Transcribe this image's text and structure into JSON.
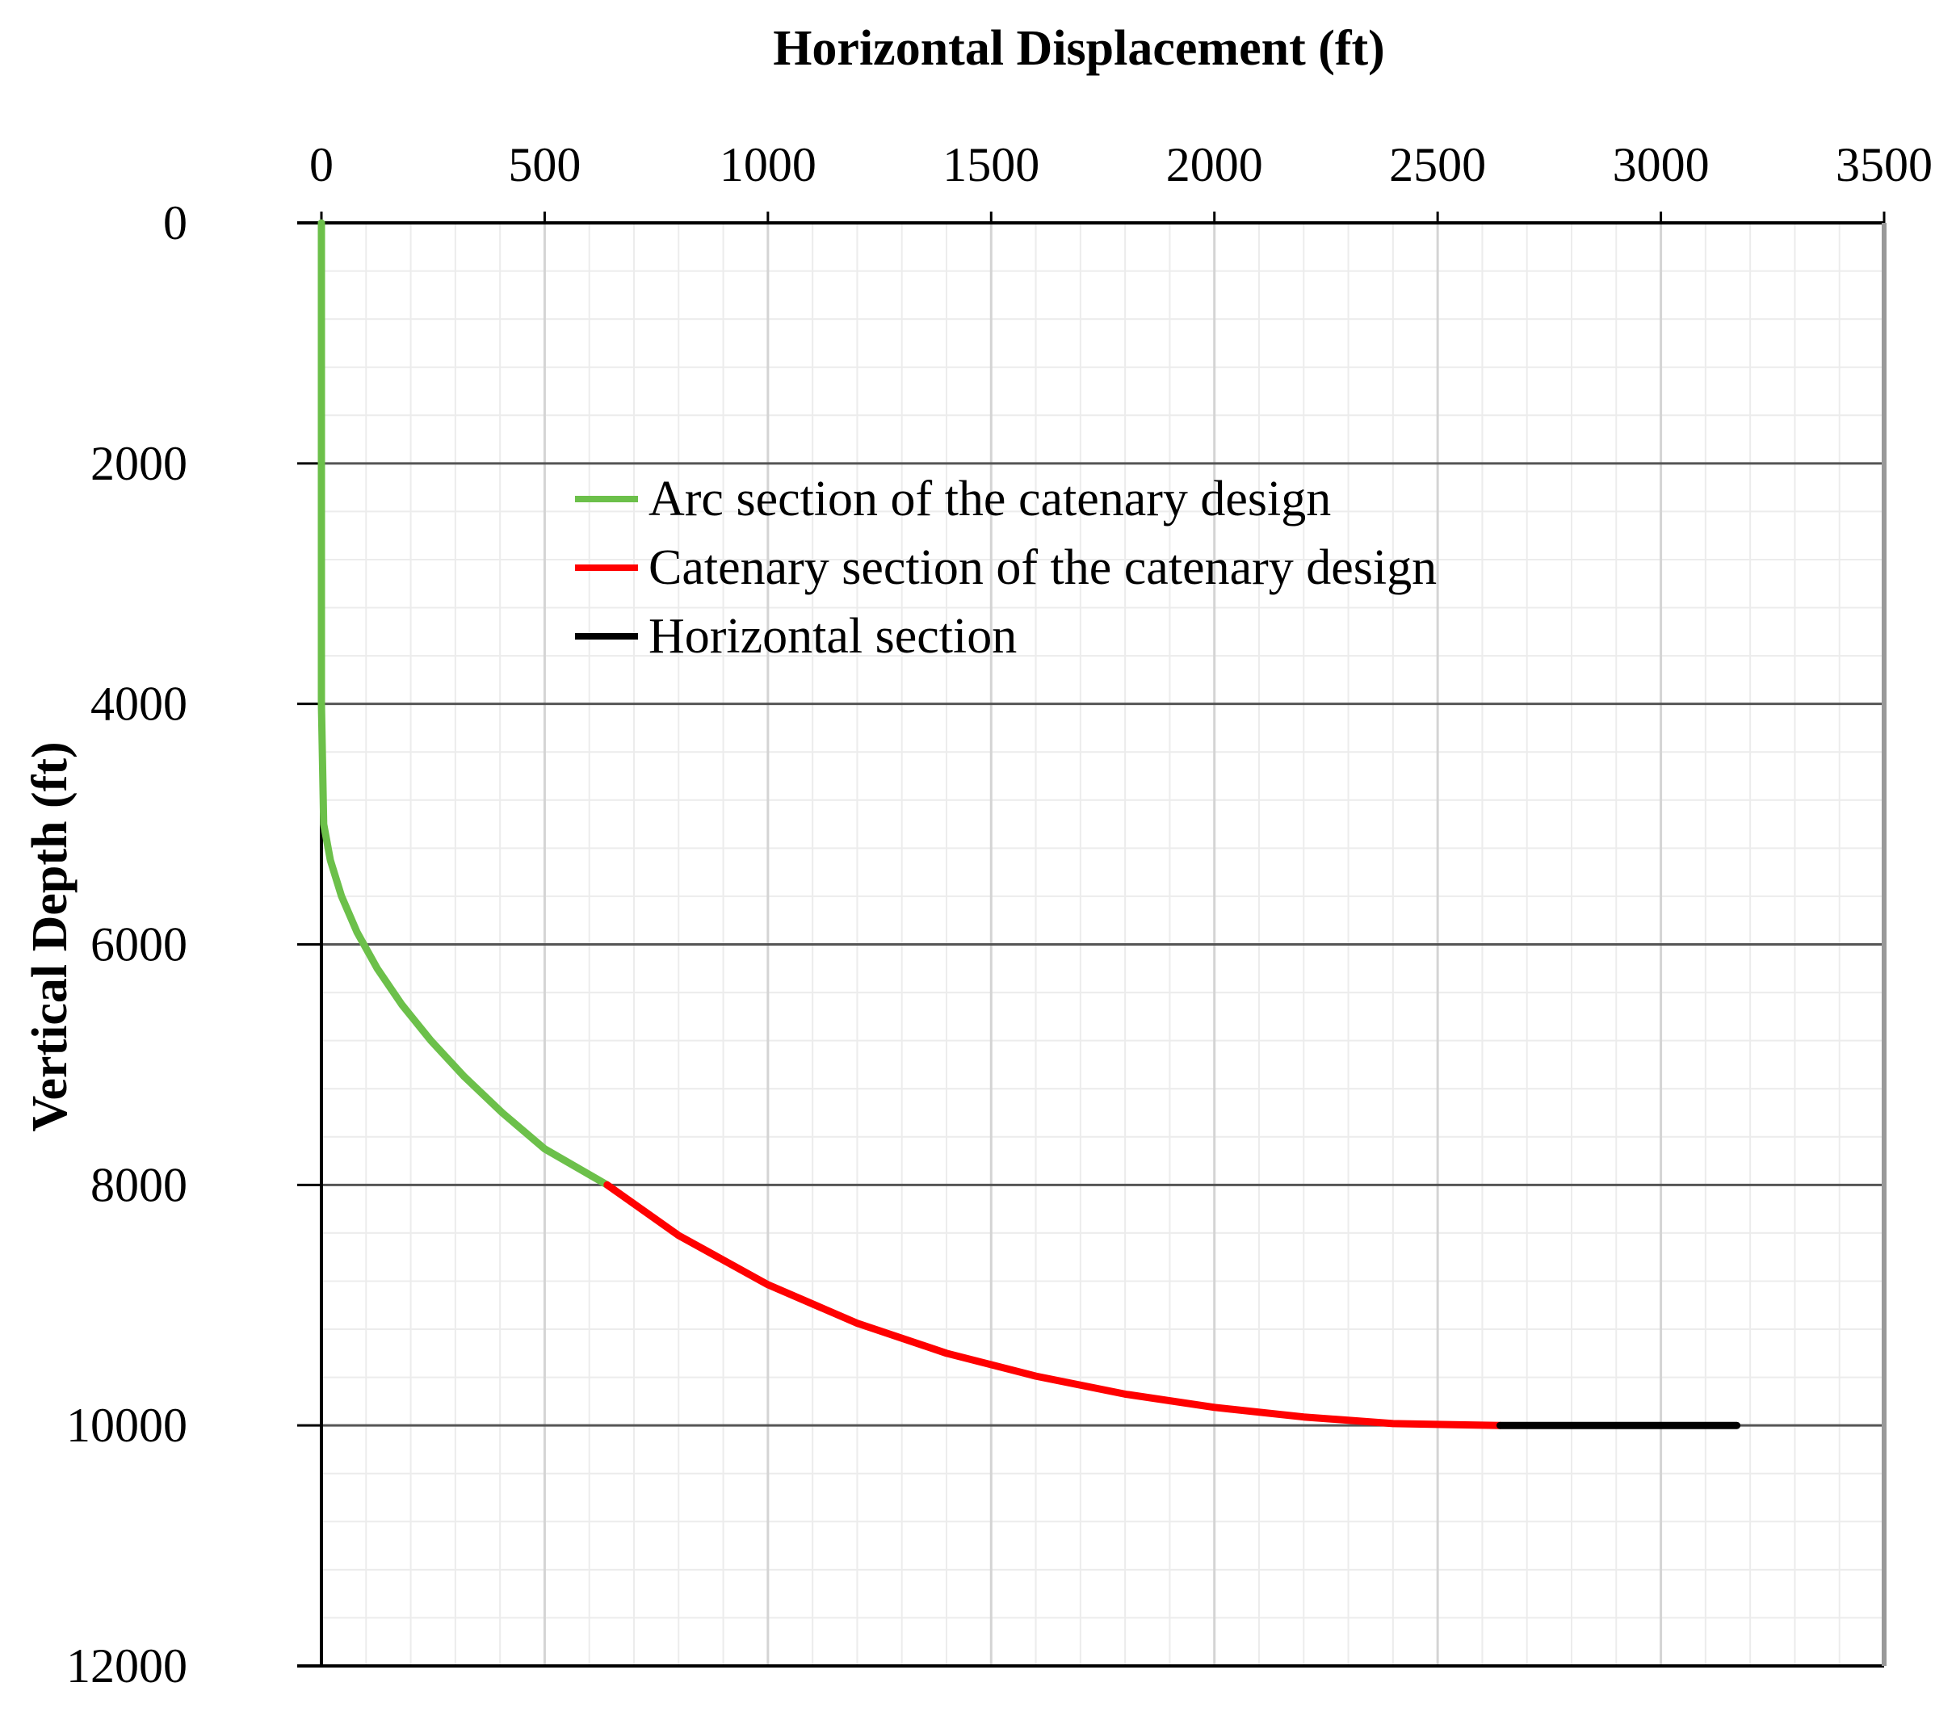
{
  "chart_data": {
    "type": "line",
    "xlabel": "Horizontal Displacement (ft)",
    "ylabel": "Vertical Depth (ft)",
    "xlim": [
      0,
      3500
    ],
    "ylim": [
      0,
      12000
    ],
    "y_inverted": true,
    "x_axis_position": "top",
    "x_ticks": [
      0,
      500,
      1000,
      1500,
      2000,
      2500,
      3000,
      3500
    ],
    "y_ticks": [
      0,
      2000,
      4000,
      6000,
      8000,
      10000,
      12000
    ],
    "x_tick_labels": [
      "0",
      "500",
      "1000",
      "1500",
      "2000",
      "2500",
      "3000",
      "3500"
    ],
    "y_tick_labels": [
      "0",
      "2000",
      "4000",
      "6000",
      "8000",
      "10000",
      "12000"
    ],
    "grid": true,
    "legend_position": "upper-center",
    "series": [
      {
        "name": "Arc section of the catenary design",
        "color": "#6cc04a",
        "x": [
          0,
          0,
          0,
          0,
          0,
          5,
          20,
          45,
          80,
          125,
          180,
          245,
          320,
          405,
          500,
          640
        ],
        "y": [
          0,
          1000,
          2000,
          3000,
          4000,
          5000,
          5300,
          5600,
          5900,
          6200,
          6500,
          6800,
          7100,
          7400,
          7700,
          8000
        ]
      },
      {
        "name": "Catenary section of the catenary design",
        "color": "#ff0000",
        "x": [
          640,
          800,
          1000,
          1200,
          1400,
          1600,
          1800,
          2000,
          2200,
          2400,
          2640
        ],
        "y": [
          8000,
          8420,
          8830,
          9150,
          9400,
          9590,
          9740,
          9850,
          9930,
          9985,
          10000
        ]
      },
      {
        "name": "Horizontal section",
        "color": "#000000",
        "x": [
          2640,
          3170
        ],
        "y": [
          10000,
          10000
        ]
      }
    ]
  }
}
